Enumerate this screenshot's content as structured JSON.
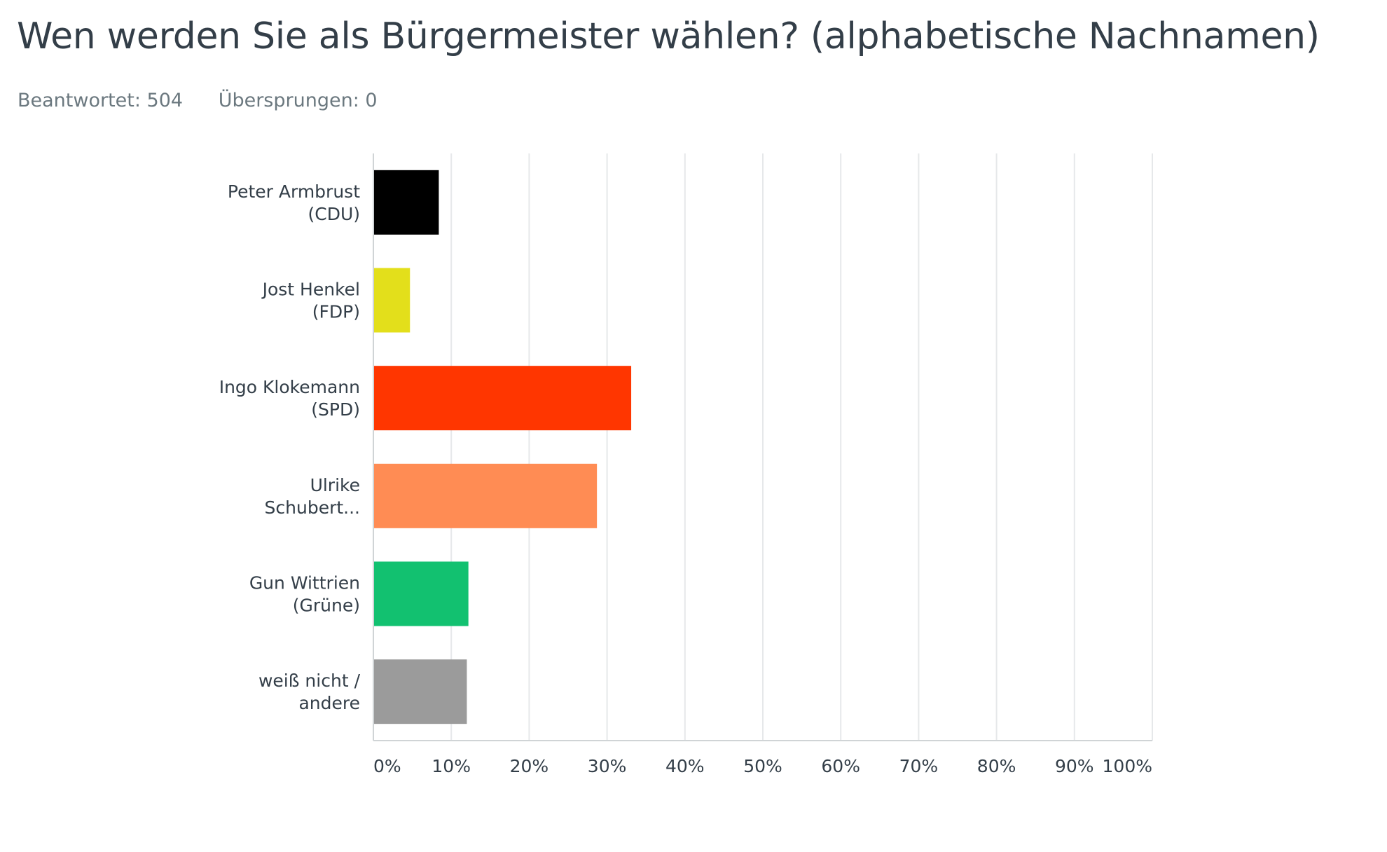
{
  "header": {
    "title": "Wen werden Sie als Bürgermeister wählen? (alphabetische Nachnamen)",
    "answered": "Beantwortet: 504",
    "skipped": "Übersprungen: 0"
  },
  "chart_data": {
    "type": "bar",
    "orientation": "horizontal",
    "categories": [
      [
        "Peter Armbrust",
        "(CDU)"
      ],
      [
        "Jost Henkel",
        "(FDP)"
      ],
      [
        "Ingo Klokemann",
        "(SPD)"
      ],
      [
        "Ulrike",
        "Schubert..."
      ],
      [
        "Gun Wittrien",
        "(Grüne)"
      ],
      [
        "weiß nicht /",
        "andere"
      ]
    ],
    "values": [
      8.4,
      4.7,
      33.1,
      28.7,
      12.2,
      12.0
    ],
    "colors": [
      "#000000",
      "#e3df1b",
      "#ff3600",
      "#ff8c54",
      "#12c170",
      "#9b9b9b"
    ],
    "unit": "%",
    "xlim": [
      0,
      100
    ],
    "x_ticks": [
      "0%",
      "10%",
      "20%",
      "30%",
      "40%",
      "50%",
      "60%",
      "70%",
      "80%",
      "90%",
      "100%"
    ],
    "grid": true
  }
}
